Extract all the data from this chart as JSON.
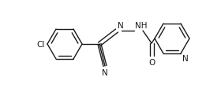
{
  "bg_color": "#ffffff",
  "line_color": "#1a1a1a",
  "lw": 1.0,
  "figsize": [
    2.61,
    1.13
  ],
  "dpi": 100,
  "xlim": [
    0,
    261
  ],
  "ylim": [
    0,
    113
  ]
}
